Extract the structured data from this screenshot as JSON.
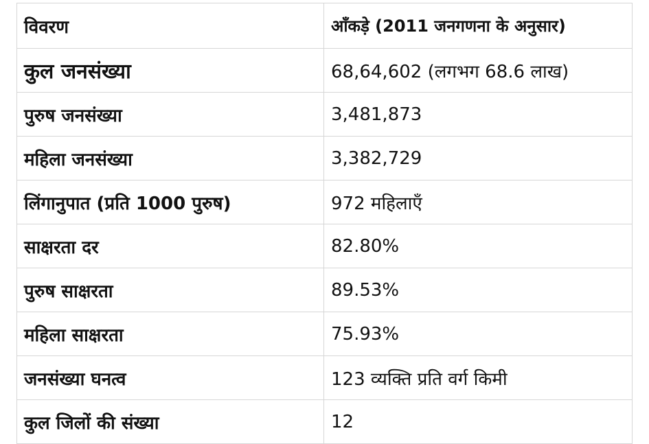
{
  "table": {
    "headers": [
      "विवरण",
      "आँकड़े (2011 जनगणना के अनुसार)"
    ],
    "rows": [
      {
        "label": "कुल जनसंख्या",
        "value": "68,64,602 (लगभग 68.6 लाख)"
      },
      {
        "label": "पुरुष जनसंख्या",
        "value": "3,481,873"
      },
      {
        "label": "महिला जनसंख्या",
        "value": "3,382,729"
      },
      {
        "label": "लिंगानुपात (प्रति 1000 पुरुष)",
        "value": "972 महिलाएँ"
      },
      {
        "label": "साक्षरता दर",
        "value": "82.80%"
      },
      {
        "label": "पुरुष साक्षरता",
        "value": "89.53%"
      },
      {
        "label": "महिला साक्षरता",
        "value": "75.93%"
      },
      {
        "label": "जनसंख्या घनत्व",
        "value": "123 व्यक्ति प्रति वर्ग किमी"
      },
      {
        "label": "कुल जिलों की संख्या",
        "value": "12"
      }
    ]
  }
}
